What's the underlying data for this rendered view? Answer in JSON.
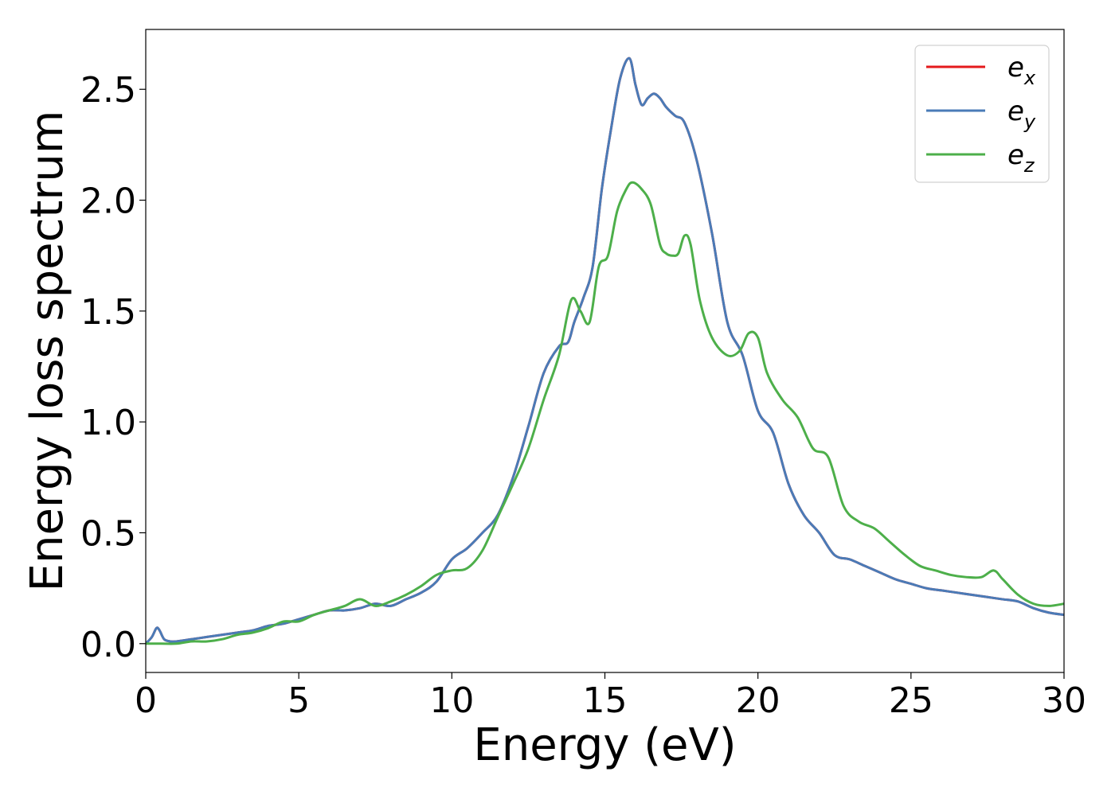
{
  "chart_data": {
    "type": "line",
    "title": "",
    "xlabel": "Energy (eV)",
    "ylabel": "Energy loss spectrum",
    "xlim": [
      0,
      30
    ],
    "ylim": [
      -0.13,
      2.77
    ],
    "xticks": [
      0,
      5,
      10,
      15,
      20,
      25,
      30
    ],
    "xtick_labels": [
      "0",
      "5",
      "10",
      "15",
      "20",
      "25",
      "30"
    ],
    "yticks": [
      0.0,
      0.5,
      1.0,
      1.5,
      2.0,
      2.5
    ],
    "ytick_labels": [
      "0.0",
      "0.5",
      "1.0",
      "1.5",
      "2.0",
      "2.5"
    ],
    "grid": false,
    "legend_position": "top-right",
    "series": [
      {
        "name": "e",
        "subscript": "x",
        "color": "#e41a1c",
        "x": [
          0,
          0.2,
          0.35,
          0.45,
          0.6,
          0.8,
          1.0,
          1.5,
          2.0,
          2.5,
          3.0,
          3.5,
          4.0,
          4.5,
          5.0,
          5.5,
          6.0,
          6.5,
          7.0,
          7.5,
          8.0,
          8.5,
          9.0,
          9.5,
          10.0,
          10.5,
          11.0,
          11.5,
          12.0,
          12.5,
          13.0,
          13.5,
          13.8,
          14.0,
          14.3,
          14.6,
          14.9,
          15.2,
          15.5,
          15.8,
          16.0,
          16.2,
          16.4,
          16.6,
          16.8,
          17.0,
          17.3,
          17.6,
          18.0,
          18.5,
          19.0,
          19.5,
          20.0,
          20.5,
          21.0,
          21.5,
          22.0,
          22.5,
          23.0,
          23.5,
          24.0,
          24.5,
          25.0,
          25.5,
          26.0,
          26.5,
          27.0,
          27.5,
          28.0,
          28.5,
          29.0,
          29.5,
          30.0
        ],
        "y": [
          0.0,
          0.03,
          0.07,
          0.06,
          0.02,
          0.01,
          0.01,
          0.02,
          0.03,
          0.04,
          0.05,
          0.06,
          0.08,
          0.09,
          0.11,
          0.13,
          0.15,
          0.15,
          0.16,
          0.18,
          0.17,
          0.2,
          0.23,
          0.28,
          0.38,
          0.43,
          0.5,
          0.58,
          0.75,
          0.98,
          1.22,
          1.34,
          1.36,
          1.45,
          1.56,
          1.7,
          2.05,
          2.32,
          2.55,
          2.64,
          2.52,
          2.43,
          2.46,
          2.48,
          2.46,
          2.42,
          2.38,
          2.35,
          2.18,
          1.85,
          1.45,
          1.3,
          1.05,
          0.95,
          0.72,
          0.58,
          0.5,
          0.4,
          0.38,
          0.35,
          0.32,
          0.29,
          0.27,
          0.25,
          0.24,
          0.23,
          0.22,
          0.21,
          0.2,
          0.19,
          0.16,
          0.14,
          0.13
        ]
      },
      {
        "name": "e",
        "subscript": "y",
        "color": "#4a7bb7",
        "x": [
          0,
          0.2,
          0.35,
          0.45,
          0.6,
          0.8,
          1.0,
          1.5,
          2.0,
          2.5,
          3.0,
          3.5,
          4.0,
          4.5,
          5.0,
          5.5,
          6.0,
          6.5,
          7.0,
          7.5,
          8.0,
          8.5,
          9.0,
          9.5,
          10.0,
          10.5,
          11.0,
          11.5,
          12.0,
          12.5,
          13.0,
          13.5,
          13.8,
          14.0,
          14.3,
          14.6,
          14.9,
          15.2,
          15.5,
          15.8,
          16.0,
          16.2,
          16.4,
          16.6,
          16.8,
          17.0,
          17.3,
          17.6,
          18.0,
          18.5,
          19.0,
          19.5,
          20.0,
          20.5,
          21.0,
          21.5,
          22.0,
          22.5,
          23.0,
          23.5,
          24.0,
          24.5,
          25.0,
          25.5,
          26.0,
          26.5,
          27.0,
          27.5,
          28.0,
          28.5,
          29.0,
          29.5,
          30.0
        ],
        "y": [
          0.0,
          0.03,
          0.07,
          0.06,
          0.02,
          0.01,
          0.01,
          0.02,
          0.03,
          0.04,
          0.05,
          0.06,
          0.08,
          0.09,
          0.11,
          0.13,
          0.15,
          0.15,
          0.16,
          0.18,
          0.17,
          0.2,
          0.23,
          0.28,
          0.38,
          0.43,
          0.5,
          0.58,
          0.75,
          0.98,
          1.22,
          1.34,
          1.36,
          1.45,
          1.56,
          1.7,
          2.05,
          2.32,
          2.55,
          2.64,
          2.52,
          2.43,
          2.46,
          2.48,
          2.46,
          2.42,
          2.38,
          2.35,
          2.18,
          1.85,
          1.45,
          1.3,
          1.05,
          0.95,
          0.72,
          0.58,
          0.5,
          0.4,
          0.38,
          0.35,
          0.32,
          0.29,
          0.27,
          0.25,
          0.24,
          0.23,
          0.22,
          0.21,
          0.2,
          0.19,
          0.16,
          0.14,
          0.13
        ]
      },
      {
        "name": "e",
        "subscript": "z",
        "color": "#4daf4a",
        "x": [
          0,
          0.5,
          1.0,
          1.5,
          2.0,
          2.5,
          3.0,
          3.5,
          4.0,
          4.5,
          5.0,
          5.5,
          6.0,
          6.5,
          7.0,
          7.5,
          8.0,
          8.5,
          9.0,
          9.5,
          10.0,
          10.5,
          11.0,
          11.5,
          12.0,
          12.5,
          13.0,
          13.5,
          13.9,
          14.2,
          14.5,
          14.8,
          15.1,
          15.4,
          15.7,
          15.9,
          16.2,
          16.5,
          16.8,
          17.0,
          17.2,
          17.4,
          17.6,
          17.8,
          18.1,
          18.5,
          19.0,
          19.4,
          19.7,
          20.0,
          20.3,
          20.8,
          21.3,
          21.8,
          22.3,
          22.8,
          23.3,
          23.8,
          24.3,
          24.8,
          25.3,
          25.8,
          26.3,
          26.8,
          27.3,
          27.7,
          28.0,
          28.5,
          29.0,
          29.5,
          30.0
        ],
        "y": [
          0.0,
          0.0,
          0.0,
          0.01,
          0.01,
          0.02,
          0.04,
          0.05,
          0.07,
          0.1,
          0.1,
          0.13,
          0.15,
          0.17,
          0.2,
          0.17,
          0.19,
          0.22,
          0.26,
          0.31,
          0.33,
          0.34,
          0.42,
          0.57,
          0.72,
          0.88,
          1.1,
          1.3,
          1.55,
          1.5,
          1.45,
          1.7,
          1.75,
          1.95,
          2.05,
          2.08,
          2.05,
          1.98,
          1.8,
          1.76,
          1.75,
          1.76,
          1.84,
          1.8,
          1.55,
          1.38,
          1.3,
          1.32,
          1.4,
          1.38,
          1.22,
          1.1,
          1.02,
          0.88,
          0.84,
          0.62,
          0.55,
          0.52,
          0.46,
          0.4,
          0.35,
          0.33,
          0.31,
          0.3,
          0.3,
          0.33,
          0.29,
          0.22,
          0.18,
          0.17,
          0.18
        ]
      }
    ]
  }
}
